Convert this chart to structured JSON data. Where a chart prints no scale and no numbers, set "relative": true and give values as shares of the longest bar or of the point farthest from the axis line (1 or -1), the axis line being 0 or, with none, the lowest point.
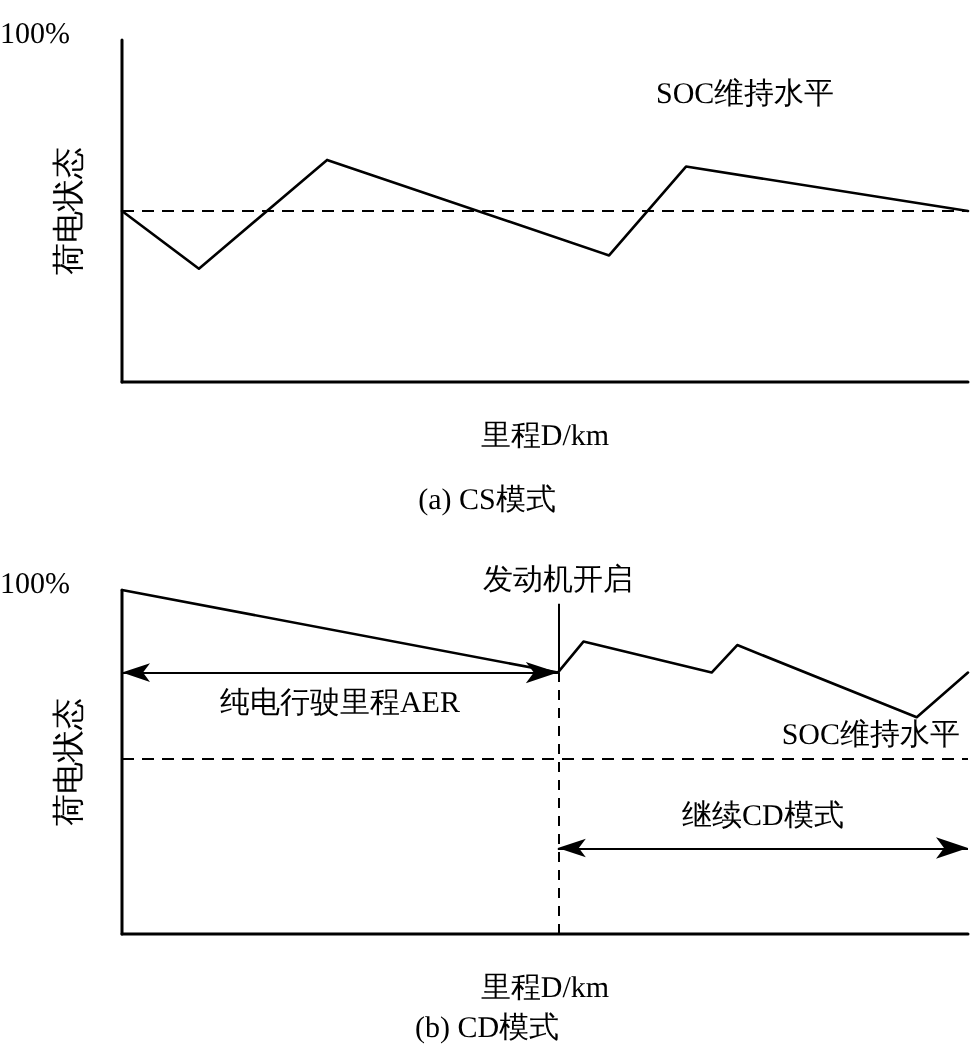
{
  "chart_data": [
    {
      "type": "line",
      "title": "(a) CS模式",
      "xlabel": "里程D/km",
      "ylabel": "荷电状态",
      "relative": true,
      "categories": [
        null,
        null,
        null,
        null,
        null,
        null,
        null,
        null,
        null,
        null,
        null,
        null,
        null,
        null,
        null,
        null,
        null,
        null,
        null,
        null,
        null,
        null,
        null,
        null,
        null,
        null,
        null,
        null,
        null,
        null,
        null,
        null,
        null,
        null
      ],
      "series": [
        {
          "color": "#000000",
          "values": [
            0.77,
            null,
            null,
            0.51,
            null,
            null,
            null,
            null,
            1,
            null,
            null,
            null,
            null,
            null,
            null,
            null,
            null,
            null,
            null,
            0.57,
            null,
            null,
            0.97,
            null,
            null,
            null,
            null,
            null,
            null,
            null,
            null,
            null,
            null,
            0.77
          ]
        }
      ],
      "marker": "none",
      "line_style": "solid",
      "ref_lines": [
        {
          "axis": "y",
          "value": 0.77,
          "color": "#000000",
          "line_style": "dashed"
        }
      ],
      "annotations": [
        "100%",
        "SOC维持水平"
      ]
    },
    {
      "type": "line",
      "title": "(b) CD模式",
      "xlabel": "里程D/km",
      "ylabel": "荷电状态",
      "relative": true,
      "categories": [
        null,
        null,
        null,
        null,
        null,
        null,
        null,
        null,
        null,
        null,
        null,
        null,
        null,
        null,
        null,
        null,
        null,
        null,
        null,
        null,
        null,
        null,
        null,
        null,
        null,
        null,
        null,
        null,
        null,
        null,
        null,
        null,
        null,
        null
      ],
      "series": [
        {
          "color": "#000000",
          "values": [
            1,
            null,
            null,
            null,
            null,
            null,
            null,
            null,
            null,
            null,
            null,
            null,
            null,
            null,
            null,
            null,
            null,
            0.76,
            0.85,
            null,
            null,
            null,
            null,
            0.76,
            0.84,
            null,
            null,
            null,
            null,
            null,
            null,
            0.63,
            null,
            0.76
          ]
        }
      ],
      "marker": "none",
      "line_style": "solid",
      "ref_lines": [
        {
          "axis": "y",
          "value": 0.51,
          "label": "SOC维持水平",
          "color": "#000000",
          "line_style": "dashed"
        }
      ],
      "annotations": [
        "100%",
        "发动机开启",
        "纯电行驶里程AER",
        "继续CD模式"
      ]
    }
  ]
}
